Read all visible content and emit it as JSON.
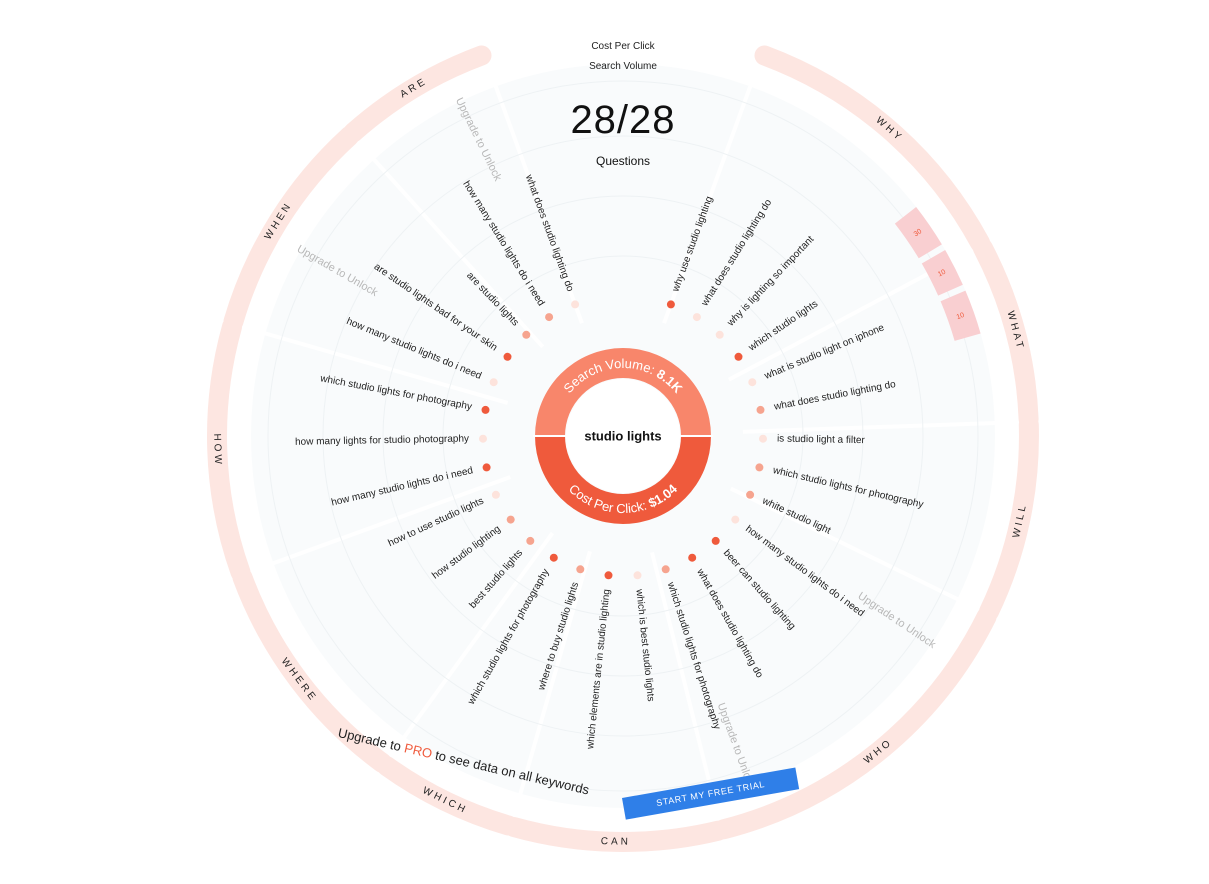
{
  "legend": {
    "cost_per_click": "Cost Per Click",
    "search_volume": "Search Volume"
  },
  "counter": {
    "value": "28/28",
    "label": "Questions"
  },
  "center": {
    "keyword": "studio lights",
    "search_volume_label": "Search Volume:",
    "search_volume_value": "8.1K",
    "cpc_label": "Cost Per Click:",
    "cpc_value": "$1.04"
  },
  "colors": {
    "ring": "#fde6e1",
    "top_half": "#f8866b",
    "bottom_half": "#ef5a3c",
    "dot_dark": "#ef5a3c",
    "dot_mid": "#f6a48f",
    "dot_light": "#fde3dc",
    "bar": "#f9cfd1",
    "accent_blue": "#2f7fe8",
    "locked_text": "#b8b8b8"
  },
  "groups": [
    {
      "label": "WHY"
    },
    {
      "label": "WHAT"
    },
    {
      "label": "WILL"
    },
    {
      "label": "WHO"
    },
    {
      "label": "CAN"
    },
    {
      "label": "WHICH"
    },
    {
      "label": "WHERE"
    },
    {
      "label": "HOW"
    },
    {
      "label": "WHEN"
    },
    {
      "label": "ARE"
    }
  ],
  "locked_labels": [
    "Upgrade to Unlock",
    "Upgrade to Unlock",
    "Upgrade to Unlock",
    "Upgrade to Unlock"
  ],
  "questions": [
    {
      "text": "why use studio lighting",
      "level": "dark"
    },
    {
      "text": "what does studio lighting do",
      "level": "light"
    },
    {
      "text": "why is lighting so important",
      "level": "light"
    },
    {
      "text": "which studio lights",
      "level": "dark"
    },
    {
      "text": "what is studio light on iphone",
      "level": "light"
    },
    {
      "text": "what does studio lighting do",
      "level": "mid"
    },
    {
      "text": "is studio light a filter",
      "level": "light"
    },
    {
      "text": "which studio lights for photography",
      "level": "mid"
    },
    {
      "text": "white studio light",
      "level": "mid"
    },
    {
      "text": "how many studio lights do i need",
      "level": "light"
    },
    {
      "text": "beer can studio lighting",
      "level": "dark"
    },
    {
      "text": "what does studio lighting do",
      "level": "dark"
    },
    {
      "text": "which studio lights for photography",
      "level": "mid"
    },
    {
      "text": "which is best studio lights",
      "level": "light"
    },
    {
      "text": "which elements are in studio lighting",
      "level": "dark"
    },
    {
      "text": "where to buy studio lights",
      "level": "mid"
    },
    {
      "text": "which studio lights for photography",
      "level": "dark"
    },
    {
      "text": "best studio lights",
      "level": "mid"
    },
    {
      "text": "how studio lighting",
      "level": "mid"
    },
    {
      "text": "how to use studio lights",
      "level": "light"
    },
    {
      "text": "how many studio lights do i need",
      "level": "dark"
    },
    {
      "text": "how many lights for studio photography",
      "level": "light"
    },
    {
      "text": "which studio lights for photography",
      "level": "dark"
    },
    {
      "text": "how many studio lights do i need",
      "level": "light"
    },
    {
      "text": "are studio lights bad for your skin",
      "level": "dark"
    },
    {
      "text": "are studio lights",
      "level": "mid"
    },
    {
      "text": "how many studio lights do i need",
      "level": "mid"
    },
    {
      "text": "what does studio lighting do",
      "level": "light"
    }
  ],
  "bars": [
    {
      "value": "30"
    },
    {
      "value": "10"
    },
    {
      "value": "10"
    }
  ],
  "upgrade": {
    "prefix": "Upgrade to ",
    "pro": "PRO",
    "suffix": " to see data on all keywords"
  },
  "trial_button": "START MY FREE TRIAL"
}
